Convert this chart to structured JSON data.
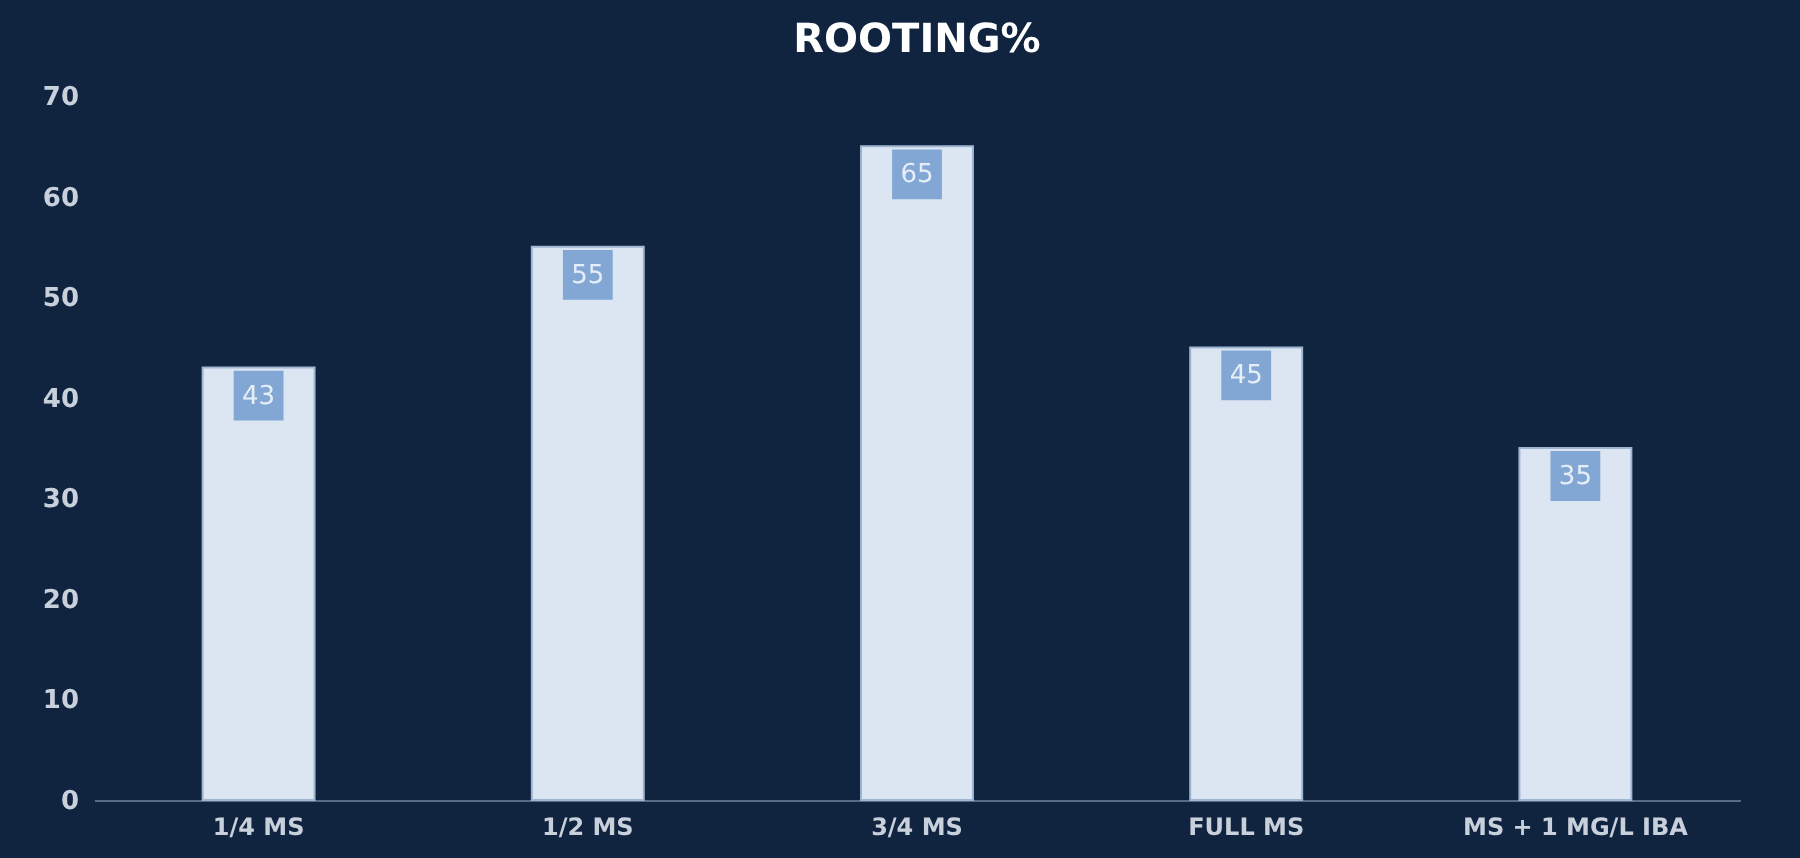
{
  "chart_data": {
    "type": "bar",
    "title": "ROOTING%",
    "categories": [
      "1/4 MS",
      "1/2 MS",
      "3/4 MS",
      "FULL MS",
      "MS + 1 MG/L IBA"
    ],
    "values": [
      43,
      55,
      65,
      45,
      35
    ],
    "color": "#dce6f2",
    "ylim": [
      0,
      70
    ],
    "yticks": [
      0,
      10,
      20,
      30,
      40,
      50,
      60,
      70
    ],
    "data_labels": true
  }
}
